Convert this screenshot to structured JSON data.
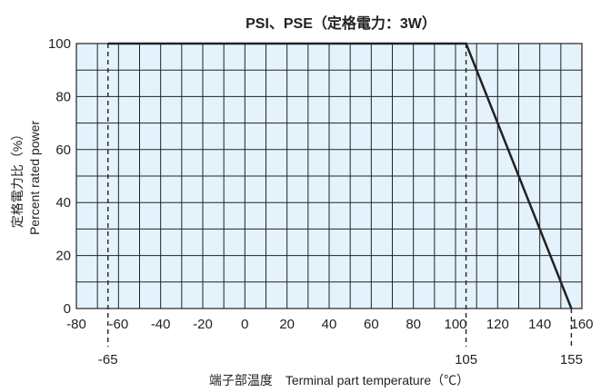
{
  "chart_data": {
    "type": "line",
    "title": "PSI、PSE（定格電力：3W）",
    "xlabel": "端子部温度　Terminal part temperature（℃）",
    "ylabel_ja": "定格電力比（%）",
    "ylabel_en": "Percent rated power",
    "xlim": [
      -80,
      160
    ],
    "ylim": [
      0,
      100
    ],
    "xticks": [
      -80,
      -60,
      -40,
      -20,
      0,
      20,
      40,
      60,
      80,
      100,
      120,
      140,
      160
    ],
    "yticks": [
      0,
      20,
      40,
      60,
      80,
      100
    ],
    "x_minor_step": 10,
    "y_minor_step": 10,
    "grid": true,
    "background_color": "#e4f3fb",
    "line_color": "#222222",
    "series": [
      {
        "x": [
          -65,
          105,
          155
        ],
        "y": [
          100,
          100,
          0
        ]
      }
    ],
    "reference_lines": [
      {
        "x": -65,
        "label": "-65"
      },
      {
        "x": 105,
        "label": "105"
      },
      {
        "x": 155,
        "label": "155"
      }
    ]
  }
}
